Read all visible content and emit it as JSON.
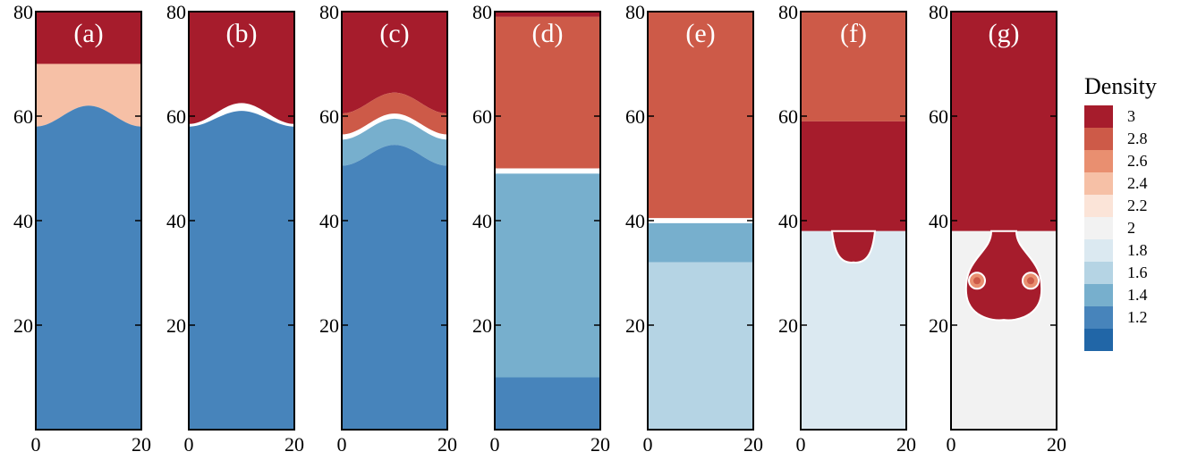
{
  "chart_data": {
    "type": "heatmap",
    "x_ticks": [
      "0",
      "20"
    ],
    "y_ticks": [
      "20",
      "40",
      "60",
      "80"
    ],
    "xlim": [
      0,
      20
    ],
    "ylim": [
      0,
      80
    ],
    "grid": false,
    "legend": {
      "title": "Density",
      "placement": "right",
      "levels": [
        3,
        2.8,
        2.6,
        2.4,
        2.2,
        2,
        1.8,
        1.6,
        1.4,
        1.2
      ],
      "labels": [
        "3",
        "2.8",
        "2.6",
        "2.4",
        "2.2",
        "2",
        "1.8",
        "1.6",
        "1.4",
        "1.2"
      ],
      "colors": [
        "#a61c2c",
        "#cd5a48",
        "#e98f70",
        "#f6c0a6",
        "#fbe4d8",
        "#f2f2f2",
        "#dbe9f1",
        "#b5d4e4",
        "#77afcd",
        "#4784bb",
        "#2166a7"
      ]
    },
    "panels": [
      {
        "label": "(a)",
        "regions": [
          {
            "top": 80,
            "bottom": 70,
            "level": 3
          },
          {
            "top": 70,
            "bottom_amp": 2,
            "bottom_mean": 60,
            "level": 2.4
          },
          {
            "top_amp": 2,
            "top_mean": 60,
            "bottom": 0,
            "level": 1.2
          }
        ]
      },
      {
        "label": "(b)",
        "regions": [
          {
            "top": 80,
            "bottom_amp": 2,
            "bottom_mean": 60.5,
            "level": 3
          },
          {
            "top_amp": 1.5,
            "top_mean": 59.5,
            "bottom": 0,
            "level": 1.2
          }
        ]
      },
      {
        "label": "(c)",
        "regions": [
          {
            "top": 80,
            "bottom_amp": 2,
            "bottom_mean": 62.5,
            "level": 3
          },
          {
            "top_amp": 2,
            "top_mean": 62.5,
            "bottom_amp": 2,
            "bottom_mean": 58.5,
            "level": 2.8
          },
          {
            "top_amp": 2,
            "top_mean": 57.5,
            "bottom_amp": 2,
            "bottom_mean": 52.5,
            "level": 1.4
          },
          {
            "top_amp": 2,
            "top_mean": 52.5,
            "bottom": 0,
            "level": 1.2
          }
        ]
      },
      {
        "label": "(d)",
        "regions": [
          {
            "top": 80,
            "bottom": 79,
            "level": 3
          },
          {
            "top": 79,
            "bottom": 50,
            "level": 2.8
          },
          {
            "top": 49,
            "bottom": 10,
            "level": 1.4
          },
          {
            "top": 10,
            "bottom": 0,
            "level": 1.2
          }
        ]
      },
      {
        "label": "(e)",
        "regions": [
          {
            "top": 80,
            "bottom": 40.5,
            "level": 2.8
          },
          {
            "top": 39.5,
            "bottom": 32,
            "level": 1.4
          },
          {
            "top": 32,
            "bottom": 0,
            "level": 1.6
          }
        ]
      },
      {
        "label": "(f)",
        "regions": [
          {
            "top": 80,
            "bottom": 59,
            "level": 2.8
          },
          {
            "top": 59,
            "bottom": 38,
            "level": 3
          },
          {
            "top": 38,
            "bottom": 0,
            "level": 1.8
          }
        ]
      },
      {
        "label": "(g)",
        "regions": [
          {
            "top": 80,
            "bottom": 38,
            "level": 3
          },
          {
            "top": 38,
            "bottom": 0,
            "level": 2
          }
        ]
      }
    ]
  }
}
